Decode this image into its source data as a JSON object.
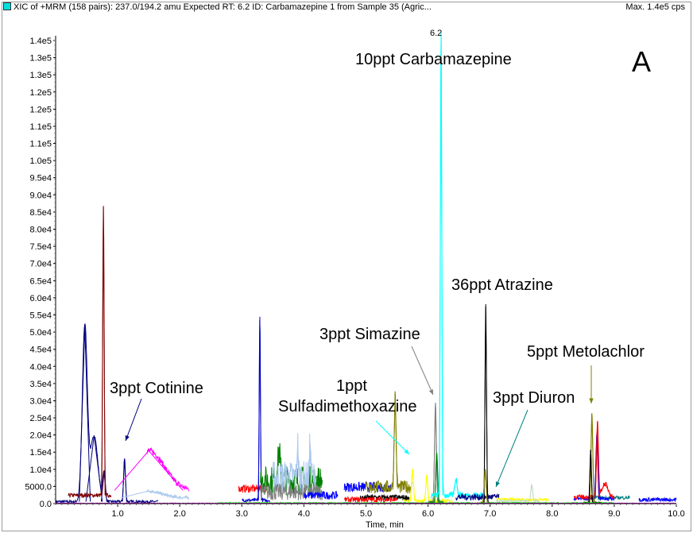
{
  "header": {
    "title": "XIC of +MRM (158 pairs): 237.0/194.2 amu Expected RT: 6.2 ID: Carbamazepine 1 from Sample 35 (Agric...",
    "max": "Max. 1.4e5 cps"
  },
  "panel_label": "A",
  "chart_data": {
    "type": "line",
    "xlabel": "Time, min",
    "ylabel": "",
    "xlim": [
      0,
      10
    ],
    "ylim": [
      0,
      140000
    ],
    "xticks": [
      "1.0",
      "2.0",
      "3.0",
      "4.0",
      "5.0",
      "6.0",
      "7.0",
      "8.0",
      "9.0",
      "10.0"
    ],
    "yticks": [
      "0.0",
      "5000.0",
      "1.0e4",
      "1.5e4",
      "2.0e4",
      "2.5e4",
      "3.0e4",
      "3.5e4",
      "4.0e4",
      "4.5e4",
      "5.0e4",
      "5.5e4",
      "6.0e4",
      "6.5e4",
      "7.0e4",
      "7.5e4",
      "8.0e4",
      "8.5e4",
      "9.0e4",
      "9.5e4",
      "1.0e5",
      "1.1e5",
      "1.1e5",
      "1.2e5",
      "1.2e5",
      "1.3e5",
      "1.3e5",
      "1.4e5"
    ],
    "peak_label": "6.2",
    "traces": [
      {
        "color": "#000080",
        "range": [
          0,
          1.65
        ],
        "base": 600,
        "noise": 400,
        "peaks": [
          [
            0.47,
            53000,
            0.04
          ],
          [
            0.62,
            20000,
            0.06
          ],
          [
            0.78,
            9000,
            0.02
          ],
          [
            1.11,
            13000,
            0.015
          ]
        ]
      },
      {
        "color": "#800000",
        "range": [
          0.2,
          0.9
        ],
        "base": 2500,
        "noise": 600,
        "peaks": [
          [
            0.77,
            87500,
            0.012
          ]
        ]
      },
      {
        "color": "#ff00ff",
        "range": [
          1.47,
          2.15
        ],
        "base": 4000,
        "noise": 900,
        "peaks": [
          [
            1.5,
            12000,
            0.25
          ]
        ]
      },
      {
        "color": "#aac8ee",
        "range": [
          1.47,
          2.15
        ],
        "base": 1800,
        "noise": 500,
        "peaks": [
          [
            1.5,
            2000,
            0.2
          ]
        ]
      },
      {
        "color": "#ff0000",
        "range": [
          2.95,
          3.4
        ],
        "base": 4500,
        "noise": 1200,
        "peaks": []
      },
      {
        "color": "#0000cc",
        "range": [
          3.0,
          3.45
        ],
        "base": 1000,
        "noise": 500,
        "peaks": [
          [
            3.29,
            55500,
            0.01
          ]
        ]
      },
      {
        "color": "#008000",
        "range": [
          3.3,
          4.3
        ],
        "base": 7000,
        "noise": 4500,
        "peaks": [
          [
            3.6,
            9000,
            0.02
          ]
        ]
      },
      {
        "color": "#aac8ee",
        "range": [
          3.5,
          4.2
        ],
        "base": 8000,
        "noise": 5000,
        "peaks": [
          [
            3.9,
            10000,
            0.01
          ],
          [
            4.1,
            10000,
            0.01
          ]
        ]
      },
      {
        "color": "#808080",
        "range": [
          3.3,
          4.3
        ],
        "base": 3500,
        "noise": 2500,
        "peaks": []
      },
      {
        "color": "#0000ff",
        "range": [
          4.0,
          4.55
        ],
        "base": 2500,
        "noise": 1200,
        "peaks": []
      },
      {
        "color": "#0000ff",
        "range": [
          4.65,
          5.4
        ],
        "base": 5000,
        "noise": 1500,
        "peaks": []
      },
      {
        "color": "#808000",
        "range": [
          5.0,
          5.75
        ],
        "base": 5000,
        "noise": 2000,
        "peaks": [
          [
            5.47,
            28000,
            0.015
          ]
        ]
      },
      {
        "color": "#000000",
        "range": [
          4.9,
          5.7
        ],
        "base": 1800,
        "noise": 900,
        "peaks": []
      },
      {
        "color": "#ff0000",
        "range": [
          4.65,
          5.5
        ],
        "base": 1200,
        "noise": 800,
        "peaks": []
      },
      {
        "color": "#ffff00",
        "range": [
          5.6,
          6.4
        ],
        "base": 800,
        "noise": 500,
        "peaks": [
          [
            5.75,
            9500,
            0.015
          ],
          [
            5.98,
            8000,
            0.015
          ]
        ]
      },
      {
        "color": "#808080",
        "range": [
          6.0,
          6.25
        ],
        "base": 500,
        "noise": 300,
        "peaks": [
          [
            6.12,
            30000,
            0.015
          ]
        ]
      },
      {
        "color": "#008000",
        "range": [
          6.0,
          6.25
        ],
        "base": 400,
        "noise": 300,
        "peaks": [
          [
            6.14,
            15000,
            0.015
          ]
        ]
      },
      {
        "color": "#00ffff",
        "range": [
          6.05,
          6.9
        ],
        "base": 2500,
        "noise": 1000,
        "peaks": [
          [
            6.21,
            140000,
            0.012
          ],
          [
            6.45,
            5000,
            0.02
          ]
        ]
      },
      {
        "color": "#000080",
        "range": [
          6.45,
          7.15
        ],
        "base": 2000,
        "noise": 1000,
        "peaks": []
      },
      {
        "color": "#000000",
        "range": [
          6.85,
          7.0
        ],
        "base": 300,
        "noise": 200,
        "peaks": [
          [
            6.93,
            60000,
            0.012
          ]
        ]
      },
      {
        "color": "#808000",
        "range": [
          6.85,
          7.0
        ],
        "base": 300,
        "noise": 200,
        "peaks": [
          [
            6.92,
            10000,
            0.015
          ]
        ]
      },
      {
        "color": "#ffff00",
        "range": [
          7.1,
          7.95
        ],
        "base": 1200,
        "noise": 500,
        "peaks": []
      },
      {
        "color": "#c8dcc8",
        "range": [
          7.1,
          7.8
        ],
        "base": 800,
        "noise": 400,
        "peaks": [
          [
            7.67,
            5000,
            0.015
          ]
        ]
      },
      {
        "color": "#008080",
        "range": [
          8.6,
          9.25
        ],
        "base": 1800,
        "noise": 500,
        "peaks": []
      },
      {
        "color": "#0000ff",
        "range": [
          8.35,
          9.0
        ],
        "base": 1500,
        "noise": 600,
        "peaks": [
          [
            8.72,
            20000,
            0.015
          ]
        ]
      },
      {
        "color": "#ff0000",
        "range": [
          8.35,
          9.0
        ],
        "base": 2000,
        "noise": 700,
        "peaks": [
          [
            8.73,
            23000,
            0.015
          ],
          [
            8.85,
            4000,
            0.05
          ]
        ]
      },
      {
        "color": "#808000",
        "range": [
          8.5,
          8.8
        ],
        "base": 300,
        "noise": 200,
        "peaks": [
          [
            8.64,
            27000,
            0.015
          ]
        ]
      },
      {
        "color": "#000000",
        "range": [
          8.5,
          8.8
        ],
        "base": 300,
        "noise": 200,
        "peaks": [
          [
            8.62,
            16000,
            0.012
          ]
        ]
      },
      {
        "color": "#0000ff",
        "range": [
          9.4,
          10.0
        ],
        "base": 1200,
        "noise": 600,
        "peaks": []
      },
      {
        "color": "#00ff00",
        "range": [
          2.6,
          9.0
        ],
        "base": 200,
        "noise": 150,
        "peaks": []
      },
      {
        "color": "#cc00cc",
        "range": [
          0,
          10
        ],
        "base": 100,
        "noise": 80,
        "peaks": []
      }
    ],
    "annotations": [
      {
        "text": "10ppt Carbamazepine"
      },
      {
        "text": "36ppt Atrazine"
      },
      {
        "text": "3ppt Simazine",
        "color": "#808080"
      },
      {
        "text": "5ppt Metolachlor",
        "color": "#808000"
      },
      {
        "text": "3ppt Cotinine",
        "color": "#000080"
      },
      {
        "text": "1ppt",
        "color": "#00ffff"
      },
      {
        "text": "Sulfadimethoxazine"
      },
      {
        "text": "3ppt Diuron",
        "color": "#008080"
      }
    ]
  }
}
